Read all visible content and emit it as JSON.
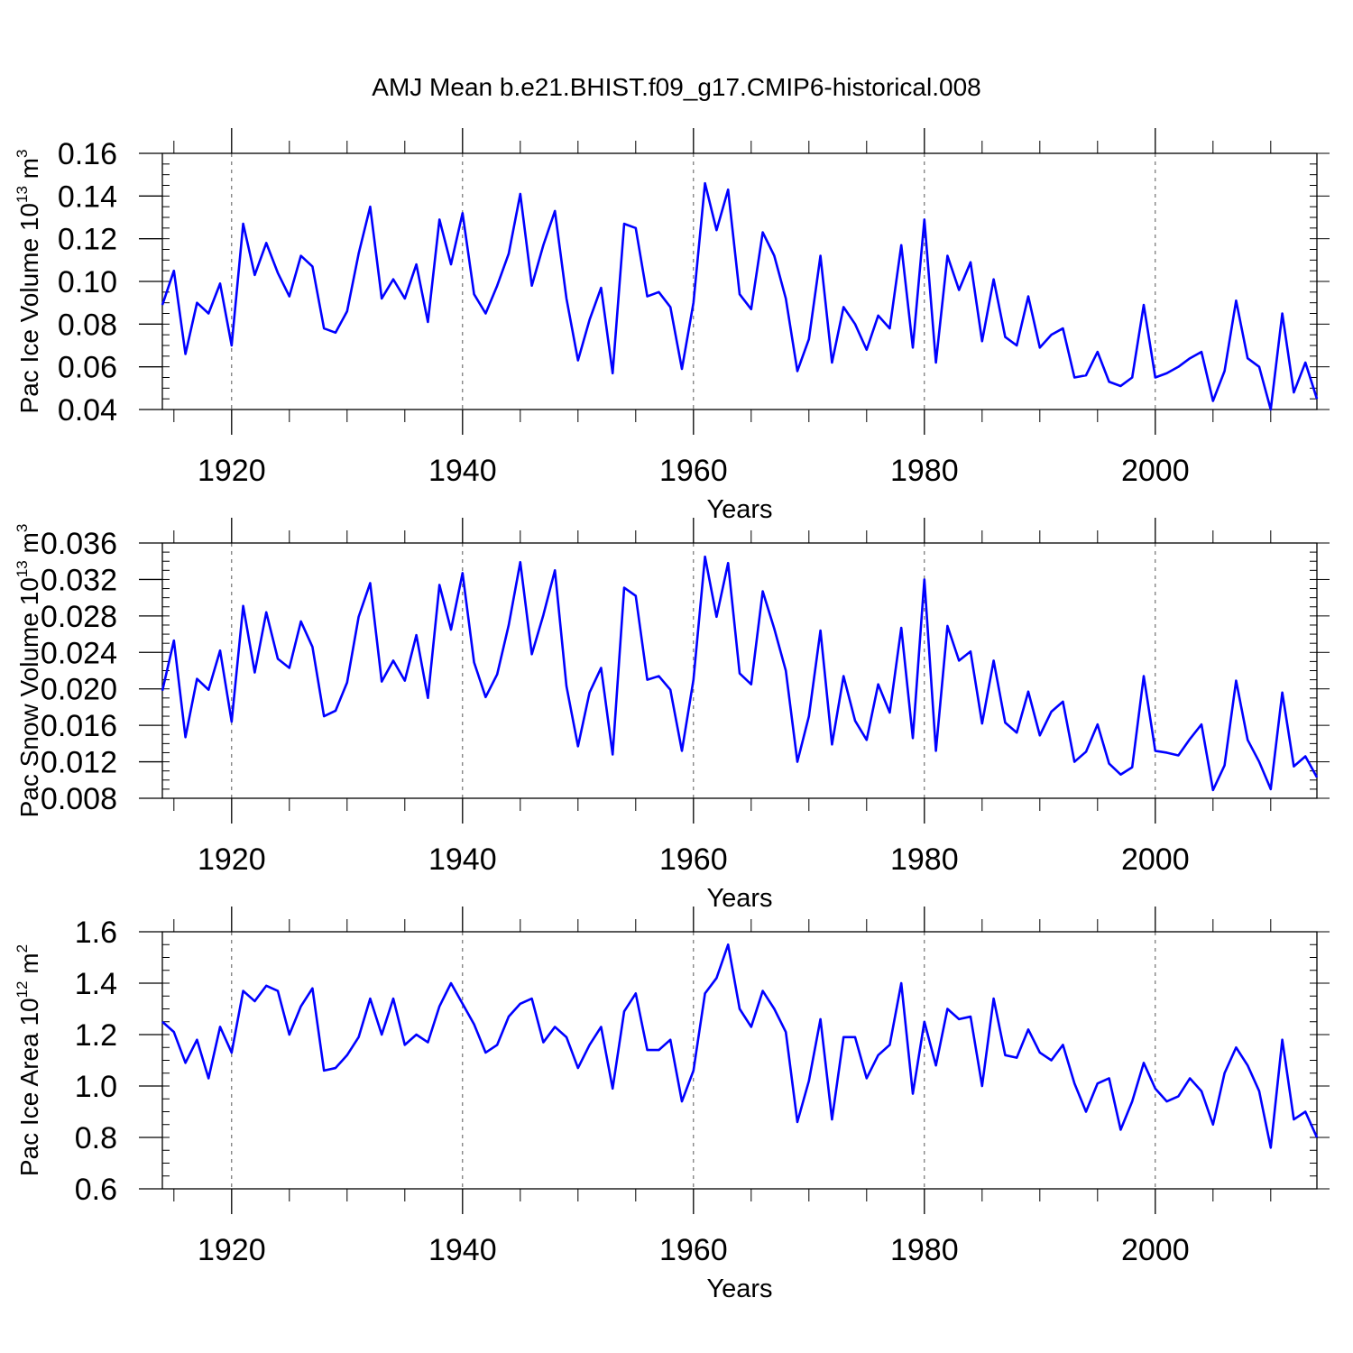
{
  "title": "AMJ Mean b.e21.BHIST.f09_g17.CMIP6-historical.008",
  "colors": {
    "line": "#0000ff",
    "axis": "#000000",
    "grid": "#555555"
  },
  "years": [
    1914,
    1915,
    1916,
    1917,
    1918,
    1919,
    1920,
    1921,
    1922,
    1923,
    1924,
    1925,
    1926,
    1927,
    1928,
    1929,
    1930,
    1931,
    1932,
    1933,
    1934,
    1935,
    1936,
    1937,
    1938,
    1939,
    1940,
    1941,
    1942,
    1943,
    1944,
    1945,
    1946,
    1947,
    1948,
    1949,
    1950,
    1951,
    1952,
    1953,
    1954,
    1955,
    1956,
    1957,
    1958,
    1959,
    1960,
    1961,
    1962,
    1963,
    1964,
    1965,
    1966,
    1967,
    1968,
    1969,
    1970,
    1971,
    1972,
    1973,
    1974,
    1975,
    1976,
    1977,
    1978,
    1979,
    1980,
    1981,
    1982,
    1983,
    1984,
    1985,
    1986,
    1987,
    1988,
    1989,
    1990,
    1991,
    1992,
    1993,
    1994,
    1995,
    1996,
    1997,
    1998,
    1999,
    2000,
    2001,
    2002,
    2003,
    2004,
    2005,
    2006,
    2007,
    2008,
    2009,
    2010,
    2011,
    2012,
    2013,
    2014
  ],
  "chart_data": [
    {
      "type": "line",
      "ylabel": {
        "prefix": "Pac Ice Volume 10",
        "exp": "13",
        "unit": " m",
        "unit_exp": "3"
      },
      "xlabel": "Years",
      "xlim": [
        1914,
        2014
      ],
      "ylim": [
        0.04,
        0.16
      ],
      "x_ticks": [
        1920,
        1940,
        1960,
        1980,
        2000
      ],
      "y_ticks": [
        "0.04",
        "0.06",
        "0.08",
        "0.10",
        "0.12",
        "0.14",
        "0.16"
      ],
      "y_minor_step": 0.005,
      "values": [
        0.089,
        0.105,
        0.066,
        0.09,
        0.085,
        0.099,
        0.07,
        0.127,
        0.103,
        0.118,
        0.104,
        0.093,
        0.112,
        0.107,
        0.078,
        0.076,
        0.086,
        0.113,
        0.135,
        0.092,
        0.101,
        0.092,
        0.108,
        0.081,
        0.129,
        0.108,
        0.132,
        0.094,
        0.085,
        0.098,
        0.113,
        0.141,
        0.098,
        0.117,
        0.133,
        0.092,
        0.063,
        0.082,
        0.097,
        0.057,
        0.127,
        0.125,
        0.093,
        0.095,
        0.088,
        0.059,
        0.09,
        0.146,
        0.124,
        0.143,
        0.094,
        0.087,
        0.123,
        0.112,
        0.092,
        0.058,
        0.073,
        0.112,
        0.062,
        0.088,
        0.08,
        0.068,
        0.084,
        0.078,
        0.117,
        0.069,
        0.129,
        0.062,
        0.112,
        0.096,
        0.109,
        0.072,
        0.101,
        0.074,
        0.07,
        0.093,
        0.069,
        0.075,
        0.078,
        0.055,
        0.056,
        0.067,
        0.053,
        0.051,
        0.055,
        0.089,
        0.055,
        0.057,
        0.06,
        0.064,
        0.067,
        0.044,
        0.058,
        0.091,
        0.064,
        0.06,
        0.04,
        0.085,
        0.048,
        0.062,
        0.045
      ]
    },
    {
      "type": "line",
      "ylabel": {
        "prefix": "Pac Snow Volume 10",
        "exp": "13",
        "unit": " m",
        "unit_exp": "3"
      },
      "xlabel": "Years",
      "xlim": [
        1914,
        2014
      ],
      "ylim": [
        0.008,
        0.036
      ],
      "x_ticks": [
        1920,
        1940,
        1960,
        1980,
        2000
      ],
      "y_ticks": [
        "0.008",
        "0.012",
        "0.016",
        "0.020",
        "0.024",
        "0.028",
        "0.032",
        "0.036"
      ],
      "y_minor_step": 0.001,
      "values": [
        0.0198,
        0.0253,
        0.0147,
        0.0211,
        0.0199,
        0.0242,
        0.0164,
        0.0291,
        0.0218,
        0.0284,
        0.0233,
        0.0223,
        0.0274,
        0.0246,
        0.017,
        0.0176,
        0.0207,
        0.0279,
        0.0316,
        0.0208,
        0.0231,
        0.0209,
        0.0259,
        0.019,
        0.0314,
        0.0265,
        0.0327,
        0.0229,
        0.0191,
        0.0216,
        0.027,
        0.0339,
        0.0238,
        0.0281,
        0.033,
        0.0203,
        0.0137,
        0.0196,
        0.0223,
        0.0128,
        0.0311,
        0.0302,
        0.021,
        0.0214,
        0.0199,
        0.0132,
        0.021,
        0.0345,
        0.0279,
        0.0338,
        0.0217,
        0.0205,
        0.0307,
        0.0266,
        0.022,
        0.012,
        0.017,
        0.0264,
        0.0139,
        0.0214,
        0.0165,
        0.0144,
        0.0205,
        0.0174,
        0.0267,
        0.0146,
        0.032,
        0.0132,
        0.0269,
        0.0231,
        0.0241,
        0.0162,
        0.0231,
        0.0163,
        0.0152,
        0.0197,
        0.0149,
        0.0175,
        0.0186,
        0.012,
        0.0131,
        0.0161,
        0.0118,
        0.0106,
        0.0114,
        0.0214,
        0.0132,
        0.013,
        0.0127,
        0.0145,
        0.0161,
        0.0089,
        0.0116,
        0.0209,
        0.0144,
        0.012,
        0.009,
        0.0196,
        0.0115,
        0.0126,
        0.0103
      ]
    },
    {
      "type": "line",
      "ylabel": {
        "prefix": "Pac Ice Area 10",
        "exp": "12",
        "unit": " m",
        "unit_exp": "2"
      },
      "xlabel": "Years",
      "xlim": [
        1914,
        2014
      ],
      "ylim": [
        0.6,
        1.6
      ],
      "x_ticks": [
        1920,
        1940,
        1960,
        1980,
        2000
      ],
      "y_ticks": [
        "0.6",
        "0.8",
        "1.0",
        "1.2",
        "1.4",
        "1.6"
      ],
      "y_minor_step": 0.05,
      "values": [
        1.25,
        1.21,
        1.09,
        1.18,
        1.03,
        1.23,
        1.13,
        1.37,
        1.33,
        1.39,
        1.37,
        1.2,
        1.31,
        1.38,
        1.06,
        1.07,
        1.12,
        1.19,
        1.34,
        1.2,
        1.34,
        1.16,
        1.2,
        1.17,
        1.31,
        1.4,
        1.32,
        1.24,
        1.13,
        1.16,
        1.27,
        1.32,
        1.34,
        1.17,
        1.23,
        1.19,
        1.07,
        1.16,
        1.23,
        0.99,
        1.29,
        1.36,
        1.14,
        1.14,
        1.18,
        0.94,
        1.06,
        1.36,
        1.42,
        1.55,
        1.3,
        1.23,
        1.37,
        1.3,
        1.21,
        0.86,
        1.02,
        1.26,
        0.87,
        1.19,
        1.19,
        1.03,
        1.12,
        1.16,
        1.4,
        0.97,
        1.25,
        1.08,
        1.3,
        1.26,
        1.27,
        1.0,
        1.34,
        1.12,
        1.11,
        1.22,
        1.13,
        1.1,
        1.16,
        1.01,
        0.9,
        1.01,
        1.03,
        0.83,
        0.94,
        1.09,
        0.99,
        0.94,
        0.96,
        1.03,
        0.98,
        0.85,
        1.05,
        1.15,
        1.08,
        0.98,
        0.76,
        1.18,
        0.87,
        0.9,
        0.8
      ]
    }
  ]
}
